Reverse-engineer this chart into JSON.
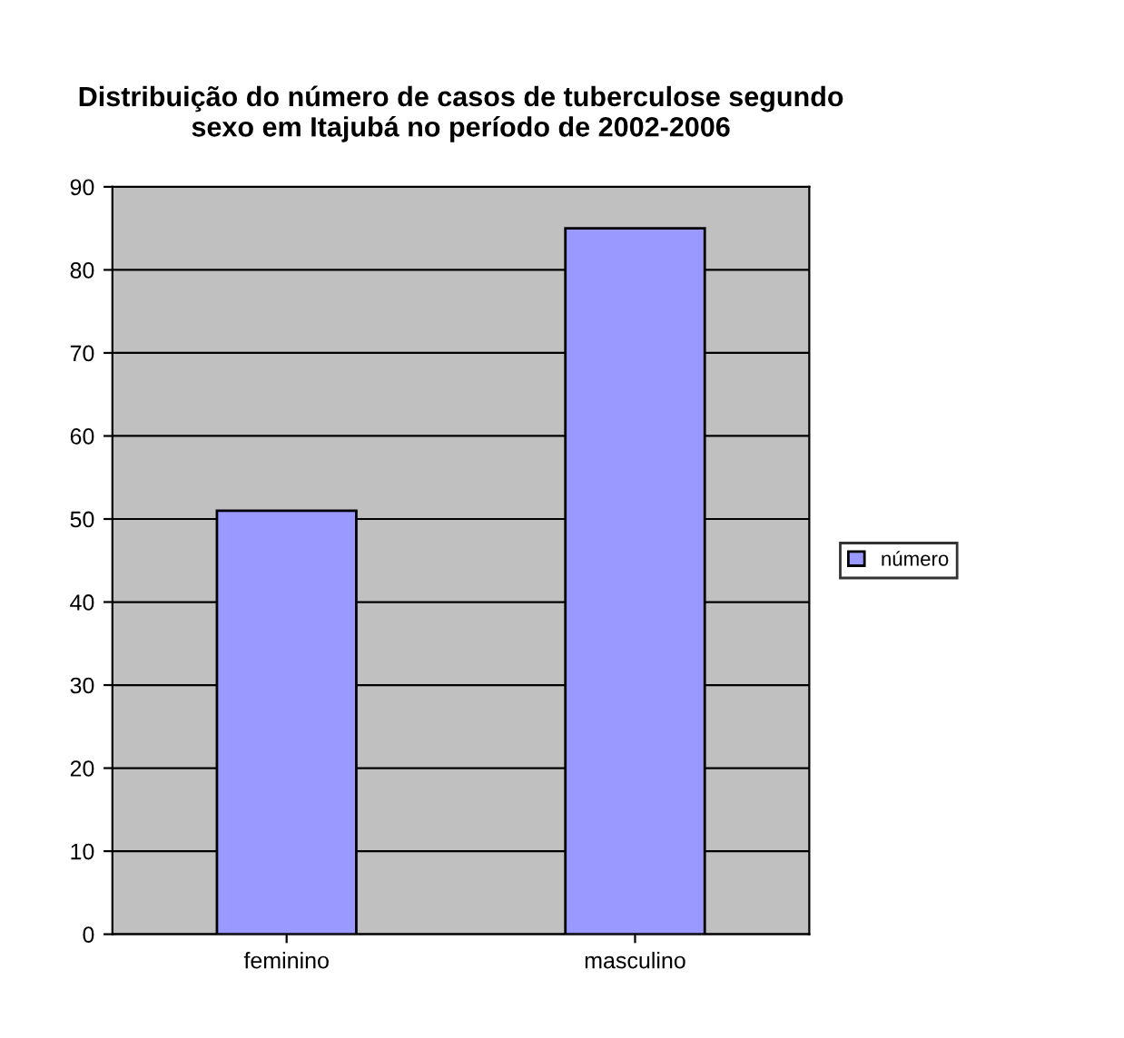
{
  "chart_data": {
    "type": "bar",
    "title": "Distribuição do número de casos de tuberculose segundo\nsexo em Itajubá no período de 2002-2006",
    "categories": [
      "feminino",
      "masculino"
    ],
    "series": [
      {
        "name": "número",
        "color": "#9999ff",
        "values": [
          51,
          85
        ]
      }
    ],
    "ylim": [
      0,
      90
    ],
    "yticks": [
      0,
      10,
      20,
      30,
      40,
      50,
      60,
      70,
      80,
      90
    ],
    "grid": "y",
    "legend": "right"
  }
}
